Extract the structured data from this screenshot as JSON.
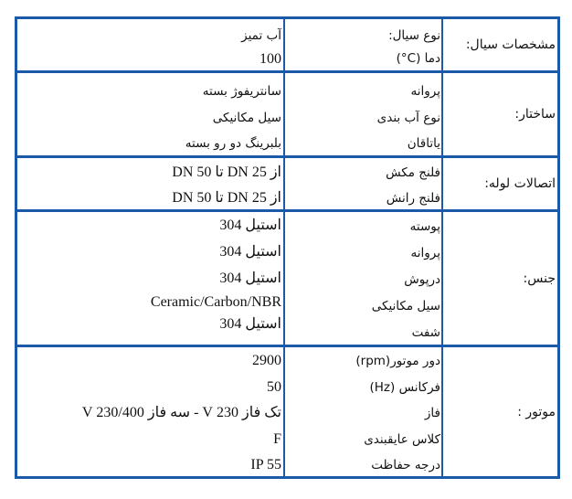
{
  "border_color": "#1a5aa8",
  "rows": [
    {
      "label": "مشخصات سیال:",
      "props": [
        "نوع سیال:",
        "دما  (C°)"
      ],
      "values": [
        "آب تمیز",
        "100"
      ]
    },
    {
      "label": "ساختار:",
      "props": [
        "پروانه",
        "نوع آب بندی",
        "یاتاقان"
      ],
      "values": [
        "سانتریفوژ بسته",
        "سیل مکانیکی",
        "بلبرینگ دو رو بسته"
      ]
    },
    {
      "label": "اتصالات لوله:",
      "props": [
        "فلنج مکش",
        "فلنج رانش"
      ],
      "values": [
        "از  DN 25  تا  DN 50",
        "از  DN 25  تا  DN 50"
      ]
    },
    {
      "label": "جنس:",
      "props": [
        "پوسته",
        "پروانه",
        "درپوش",
        "سیل مکانیکی",
        "شفت"
      ],
      "values": [
        "استیل  304",
        "استیل  304",
        "استیل  304",
        "Ceramic/Carbon/NBR",
        "استیل  304"
      ]
    },
    {
      "label": "موتور :",
      "props": [
        "دور موتور(rpm)",
        "فرکانس  (Hz)",
        "فاز",
        "کلاس عایقبندی",
        "درجه حفاظت"
      ],
      "values": [
        "2900",
        "50",
        "تک فاز 230 V  -  سه فاز 230/400 V",
        "F",
        "IP 55"
      ]
    }
  ]
}
